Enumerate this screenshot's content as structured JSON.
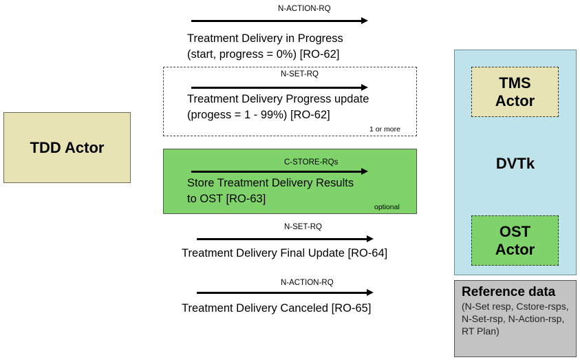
{
  "actors": {
    "tdd": "TDD Actor",
    "dvtk": "DVTk",
    "tms_line1": "TMS",
    "tms_line2": "Actor",
    "ost_line1": "OST",
    "ost_line2": "Actor"
  },
  "reference": {
    "title": "Reference data",
    "body": "(N-Set resp, Cstore-rsps, N-Set-rsp, N-Action-rsp, RT Plan)"
  },
  "messages": [
    {
      "label": "N-ACTION-RQ",
      "line1": "Treatment Delivery in Progress",
      "line2": "(start, progress = 0%) [RO-62]"
    },
    {
      "label": "N-SET-RQ",
      "line1": "Treatment Delivery Progress update",
      "line2": "(progess = 1 - 99%) [RO-62]",
      "note": "1 or more"
    },
    {
      "label": "C-STORE-RQs",
      "line1": "Store Treatment Delivery Results",
      "line2": "to OST [RO-63]",
      "note": "optional"
    },
    {
      "label": "N-SET-RQ",
      "line1": "Treatment Delivery Final Update [RO-64]"
    },
    {
      "label": "N-ACTION-RQ",
      "line1": "Treatment Delivery Canceled [RO-65]"
    }
  ]
}
